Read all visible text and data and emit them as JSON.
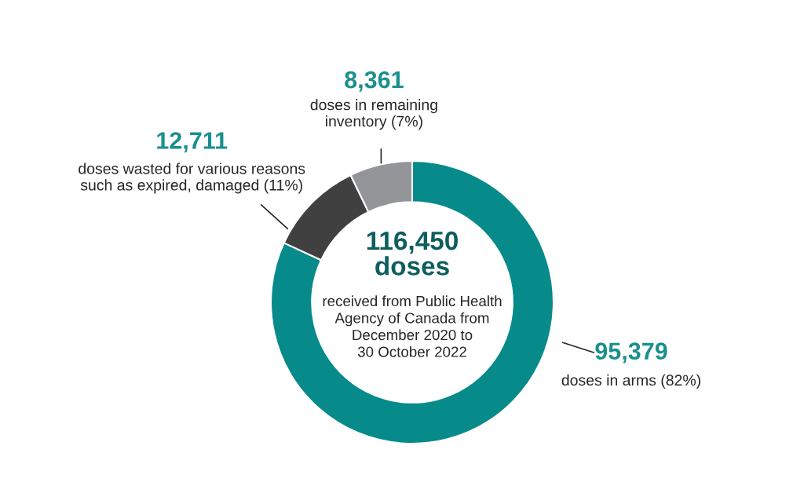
{
  "chart_data": {
    "type": "donut",
    "categories": [
      "doses in arms (82%)",
      "doses wasted for various reasons such as expired, damaged (11%)",
      "doses in remaining inventory (7%)"
    ],
    "values": [
      95379,
      12711,
      8361
    ],
    "value_labels": [
      "95,379",
      "12,711",
      "8,361"
    ],
    "colors": [
      "#078a8a",
      "#404040",
      "#939598"
    ],
    "annotations": [
      "116,450 doses",
      "received from Public Health Agency of Canada from December 2020 to 30 October 2022"
    ],
    "legend": false
  }
}
